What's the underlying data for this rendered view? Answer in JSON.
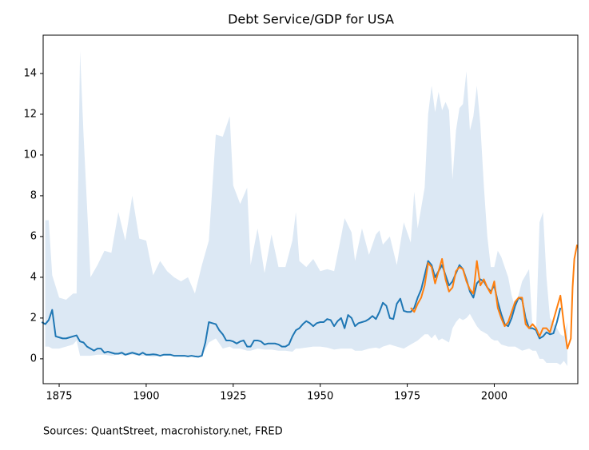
{
  "chart_data": {
    "type": "line",
    "title": "Debt Service/GDP for USA",
    "footnote": "Sources: QuantStreet, macrohistory.net, FRED",
    "xlim": [
      1870.4,
      2024
    ],
    "xticks": [
      1875,
      1900,
      1925,
      1950,
      1975,
      2000
    ],
    "ylim": [
      -1.22,
      15.88
    ],
    "yticks": [
      0,
      2,
      4,
      6,
      8,
      10,
      12,
      14
    ],
    "band": {
      "color": "#dce8f4",
      "x": [
        1871,
        1872,
        1873,
        1875,
        1877,
        1879,
        1880,
        1881,
        1882,
        1884,
        1886,
        1888,
        1890,
        1892,
        1894,
        1896,
        1898,
        1900,
        1902,
        1904,
        1906,
        1908,
        1910,
        1912,
        1914,
        1916,
        1918,
        1920,
        1922,
        1924,
        1925,
        1927,
        1929,
        1930,
        1932,
        1934,
        1936,
        1938,
        1940,
        1942,
        1943,
        1944,
        1946,
        1948,
        1950,
        1952,
        1954,
        1956,
        1957,
        1959,
        1960,
        1962,
        1964,
        1966,
        1967,
        1968,
        1970,
        1972,
        1974,
        1976,
        1977,
        1978,
        1980,
        1981,
        1982,
        1983,
        1984,
        1985,
        1986,
        1987,
        1988,
        1989,
        1990,
        1991,
        1992,
        1993,
        1994,
        1995,
        1996,
        1997,
        1998,
        1999,
        2000,
        2001,
        2002,
        2004,
        2005,
        2006,
        2008,
        2010,
        2011,
        2012,
        2013,
        2014,
        2015,
        2016,
        2018,
        2019,
        2020,
        2021
      ],
      "upper": [
        6.8,
        6.8,
        4.1,
        3.0,
        2.9,
        3.2,
        3.2,
        15.1,
        11,
        4.0,
        4.6,
        5.3,
        5.2,
        7.2,
        5.8,
        8.0,
        5.9,
        5.8,
        4.1,
        4.8,
        4.3,
        4.0,
        3.8,
        4.0,
        3.2,
        4.6,
        5.8,
        11.0,
        10.9,
        11.9,
        8.5,
        7.6,
        8.4,
        4.6,
        6.4,
        4.2,
        6.1,
        4.5,
        4.5,
        5.8,
        7.2,
        4.8,
        4.5,
        4.9,
        4.3,
        4.4,
        4.3,
        6.0,
        6.9,
        6.2,
        4.8,
        6.4,
        5.1,
        6.1,
        6.3,
        5.6,
        6.0,
        4.6,
        6.7,
        5.7,
        8.2,
        6.4,
        8.4,
        12.0,
        13.4,
        12.1,
        13.1,
        12.2,
        12.6,
        12.2,
        8.8,
        11.2,
        12.3,
        12.5,
        14.1,
        11.2,
        11.9,
        13.4,
        11.5,
        8.5,
        6.0,
        4.5,
        4.5,
        5.3,
        5.0,
        4.0,
        3.1,
        2.5,
        3.8,
        4.4,
        1.5,
        1.3,
        6.7,
        7.2,
        4.0,
        2.0,
        1.5,
        1.2,
        1.1,
        1.8
      ],
      "lower": [
        0.6,
        0.6,
        0.5,
        0.5,
        0.6,
        0.7,
        0.9,
        0.15,
        0.15,
        0.15,
        0.2,
        0.2,
        0.15,
        0.2,
        0.15,
        0.2,
        0.15,
        0.15,
        0.1,
        0.15,
        0.15,
        0.15,
        0.1,
        0.1,
        0.1,
        0.15,
        0.8,
        1.0,
        0.5,
        0.6,
        0.5,
        0.5,
        0.4,
        0.4,
        0.5,
        0.45,
        0.45,
        0.4,
        0.4,
        0.35,
        0.5,
        0.5,
        0.55,
        0.6,
        0.6,
        0.55,
        0.45,
        0.5,
        0.5,
        0.5,
        0.4,
        0.4,
        0.5,
        0.55,
        0.5,
        0.6,
        0.7,
        0.6,
        0.5,
        0.7,
        0.8,
        0.9,
        1.2,
        1.2,
        1.0,
        1.2,
        0.9,
        1.0,
        0.9,
        0.8,
        1.5,
        1.8,
        2.0,
        1.9,
        2.0,
        2.2,
        1.9,
        1.6,
        1.4,
        1.3,
        1.2,
        1.0,
        0.9,
        0.9,
        0.7,
        0.6,
        0.6,
        0.6,
        0.4,
        0.5,
        0.4,
        0.4,
        0.0,
        0.0,
        -0.2,
        -0.2,
        -0.2,
        -0.3,
        -0.1,
        -0.35
      ]
    },
    "series": [
      {
        "color": "#1f77b4",
        "x": [
          1870,
          1871,
          1872,
          1873,
          1874,
          1875,
          1876,
          1877,
          1878,
          1879,
          1880,
          1881,
          1882,
          1883,
          1884,
          1885,
          1886,
          1887,
          1888,
          1889,
          1890,
          1891,
          1892,
          1893,
          1894,
          1895,
          1896,
          1897,
          1898,
          1899,
          1900,
          1901,
          1902,
          1903,
          1904,
          1905,
          1906,
          1907,
          1908,
          1909,
          1910,
          1911,
          1912,
          1913,
          1914,
          1915,
          1916,
          1917,
          1918,
          1919,
          1920,
          1921,
          1922,
          1923,
          1924,
          1925,
          1926,
          1927,
          1928,
          1929,
          1930,
          1931,
          1932,
          1933,
          1934,
          1935,
          1936,
          1937,
          1938,
          1939,
          1940,
          1941,
          1942,
          1943,
          1944,
          1945,
          1946,
          1947,
          1948,
          1949,
          1950,
          1951,
          1952,
          1953,
          1954,
          1955,
          1956,
          1957,
          1958,
          1959,
          1960,
          1961,
          1962,
          1963,
          1964,
          1965,
          1966,
          1967,
          1968,
          1969,
          1970,
          1971,
          1972,
          1973,
          1974,
          1975,
          1976,
          1977,
          1978,
          1979,
          1980,
          1981,
          1982,
          1983,
          1984,
          1985,
          1986,
          1987,
          1988,
          1989,
          1990,
          1991,
          1992,
          1993,
          1994,
          1995,
          1996,
          1997,
          1998,
          1999,
          2000,
          2001,
          2002,
          2003,
          2004,
          2005,
          2006,
          2007,
          2008,
          2009,
          2010,
          2011,
          2012,
          2013,
          2014,
          2015,
          2016,
          2017,
          2018,
          2019
        ],
        "values": [
          1.8,
          1.7,
          1.9,
          2.4,
          1.1,
          1.05,
          1.0,
          1.0,
          1.05,
          1.1,
          1.15,
          0.85,
          0.8,
          0.6,
          0.5,
          0.4,
          0.5,
          0.5,
          0.3,
          0.35,
          0.3,
          0.25,
          0.25,
          0.3,
          0.2,
          0.25,
          0.3,
          0.25,
          0.2,
          0.3,
          0.2,
          0.2,
          0.22,
          0.2,
          0.15,
          0.2,
          0.2,
          0.2,
          0.15,
          0.15,
          0.15,
          0.15,
          0.12,
          0.15,
          0.12,
          0.1,
          0.15,
          0.8,
          1.8,
          1.75,
          1.7,
          1.4,
          1.2,
          0.9,
          0.9,
          0.85,
          0.75,
          0.85,
          0.9,
          0.6,
          0.6,
          0.9,
          0.9,
          0.85,
          0.7,
          0.75,
          0.75,
          0.75,
          0.7,
          0.6,
          0.6,
          0.7,
          1.1,
          1.4,
          1.5,
          1.7,
          1.85,
          1.75,
          1.6,
          1.75,
          1.8,
          1.8,
          1.95,
          1.9,
          1.6,
          1.85,
          2.0,
          1.5,
          2.15,
          2.0,
          1.6,
          1.75,
          1.8,
          1.85,
          1.95,
          2.1,
          1.95,
          2.3,
          2.75,
          2.6,
          2.0,
          1.95,
          2.7,
          2.95,
          2.35,
          2.3,
          2.3,
          2.5,
          3.0,
          3.4,
          4.1,
          4.8,
          4.6,
          4.0,
          4.3,
          4.6,
          4.1,
          3.6,
          3.8,
          4.2,
          4.6,
          4.4,
          3.9,
          3.3,
          3.0,
          3.7,
          3.9,
          3.8,
          3.5,
          3.3,
          3.6,
          2.8,
          2.2,
          1.7,
          1.6,
          2.0,
          2.6,
          3.0,
          2.9,
          2.0,
          1.5,
          1.5,
          1.4,
          1.0,
          1.1,
          1.3,
          1.2,
          1.25,
          1.8,
          2.5
        ]
      },
      {
        "color": "#ff7f0e",
        "x": [
          1976,
          1977,
          1978,
          1979,
          1980,
          1981,
          1982,
          1983,
          1984,
          1985,
          1986,
          1987,
          1988,
          1989,
          1990,
          1991,
          1992,
          1993,
          1994,
          1995,
          1996,
          1997,
          1998,
          1999,
          2000,
          2001,
          2002,
          2003,
          2004,
          2005,
          2006,
          2007,
          2008,
          2009,
          2010,
          2011,
          2012,
          2013,
          2014,
          2015,
          2016,
          2017,
          2018,
          2019,
          2020,
          2021,
          2022,
          2022.5,
          2023,
          2023.8
        ],
        "values": [
          2.5,
          2.3,
          2.7,
          3.0,
          3.6,
          4.7,
          4.5,
          3.7,
          4.3,
          4.9,
          3.9,
          3.3,
          3.5,
          4.3,
          4.5,
          4.4,
          3.8,
          3.4,
          3.2,
          4.8,
          3.6,
          3.9,
          3.5,
          3.2,
          3.8,
          2.5,
          2.0,
          1.6,
          1.8,
          2.3,
          2.8,
          3.0,
          3.0,
          1.7,
          1.5,
          1.7,
          1.5,
          1.1,
          1.5,
          1.5,
          1.3,
          1.9,
          2.5,
          3.1,
          1.7,
          0.5,
          1.0,
          3.5,
          4.9,
          5.6
        ]
      }
    ]
  }
}
